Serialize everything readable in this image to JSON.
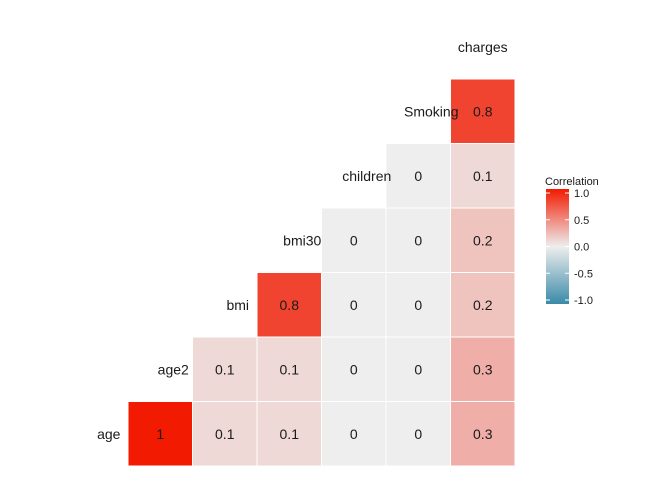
{
  "chart_data": {
    "type": "heatmap",
    "variables": [
      "age",
      "age2",
      "bmi",
      "bmi30",
      "children",
      "Smoking",
      "charges"
    ],
    "cells": [
      {
        "row": "age",
        "col": "age",
        "value": 1.0,
        "label": "1"
      },
      {
        "row": "age",
        "col": "age2",
        "value": 0.1,
        "label": "0.1"
      },
      {
        "row": "age",
        "col": "bmi",
        "value": 0.1,
        "label": "0.1"
      },
      {
        "row": "age",
        "col": "bmi30",
        "value": 0.0,
        "label": "0"
      },
      {
        "row": "age",
        "col": "children",
        "value": 0.0,
        "label": "0"
      },
      {
        "row": "age",
        "col": "Smoking",
        "value": 0.3,
        "label": "0.3"
      },
      {
        "row": "age2",
        "col": "age2",
        "value": 0.1,
        "label": "0.1"
      },
      {
        "row": "age2",
        "col": "bmi",
        "value": 0.1,
        "label": "0.1"
      },
      {
        "row": "age2",
        "col": "bmi30",
        "value": 0.0,
        "label": "0"
      },
      {
        "row": "age2",
        "col": "children",
        "value": 0.0,
        "label": "0"
      },
      {
        "row": "age2",
        "col": "Smoking",
        "value": 0.3,
        "label": "0.3"
      },
      {
        "row": "bmi",
        "col": "bmi",
        "value": 0.8,
        "label": "0.8"
      },
      {
        "row": "bmi",
        "col": "bmi30",
        "value": 0.0,
        "label": "0"
      },
      {
        "row": "bmi",
        "col": "children",
        "value": 0.0,
        "label": "0"
      },
      {
        "row": "bmi",
        "col": "Smoking",
        "value": 0.2,
        "label": "0.2"
      },
      {
        "row": "bmi30",
        "col": "bmi30",
        "value": 0.0,
        "label": "0"
      },
      {
        "row": "bmi30",
        "col": "children",
        "value": 0.0,
        "label": "0"
      },
      {
        "row": "bmi30",
        "col": "Smoking",
        "value": 0.2,
        "label": "0.2"
      },
      {
        "row": "children",
        "col": "children",
        "value": 0.0,
        "label": "0"
      },
      {
        "row": "children",
        "col": "Smoking",
        "value": 0.1,
        "label": "0.1"
      },
      {
        "row": "Smoking",
        "col": "Smoking",
        "value": 0.8,
        "label": "0.8"
      }
    ],
    "legend": {
      "title": "Correlation",
      "ticks": [
        "1.0",
        "0.5",
        "0.0",
        "-0.5",
        "-1.0"
      ],
      "tick_values": [
        1.0,
        0.5,
        0.0,
        -0.5,
        -1.0
      ],
      "range": [
        -1.0,
        1.0
      ],
      "placement": "right"
    },
    "colors": {
      "low": "#3a8aa8",
      "mid": "#eeeeee",
      "high": "#f21a00"
    },
    "grid": false
  }
}
